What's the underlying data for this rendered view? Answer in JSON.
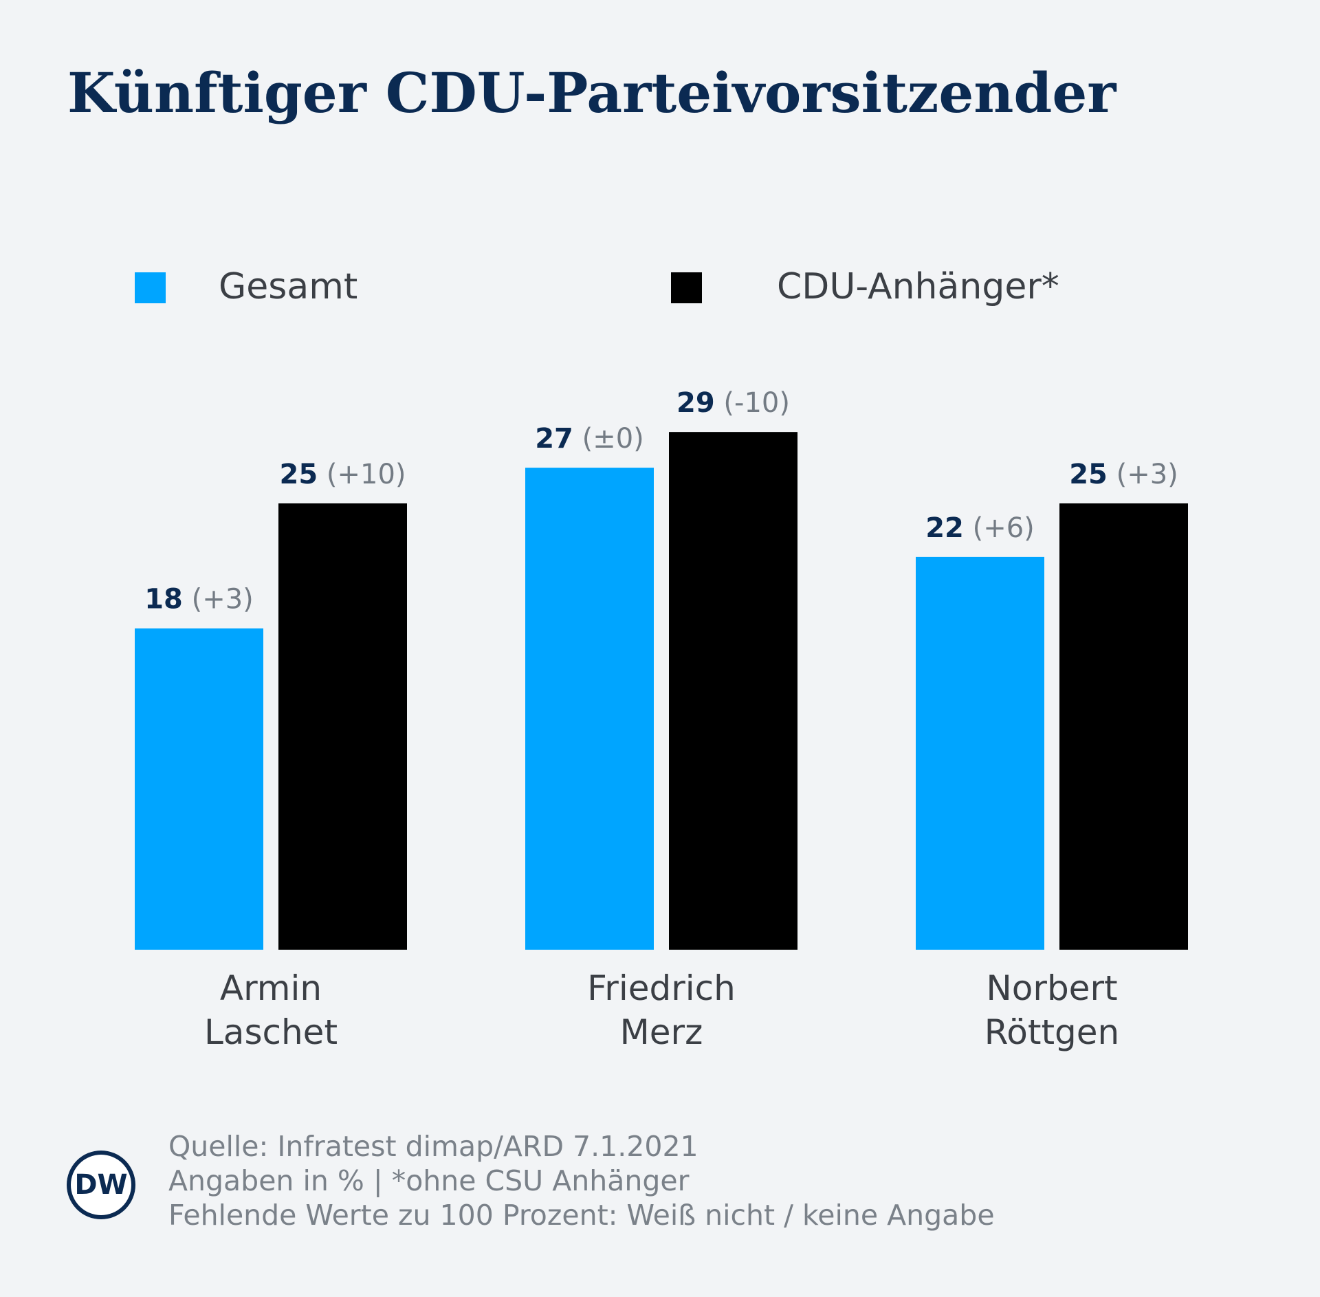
{
  "chart_data": {
    "type": "bar",
    "title": "Künftiger CDU-Parteivorsitzender",
    "categories": [
      "Armin\nLaschet",
      "Friedrich\nMerz",
      "Norbert\nRöttgen"
    ],
    "series": [
      {
        "name": "Gesamt",
        "color": "#00a5ff",
        "values": [
          18,
          27,
          22
        ],
        "change_labels": [
          "(+3)",
          "(±0)",
          "(+6)"
        ]
      },
      {
        "name": "CDU-Anhänger*",
        "color": "#000000",
        "values": [
          25,
          29,
          25
        ],
        "change_labels": [
          "(+10)",
          "(-10)",
          "(+3)"
        ]
      }
    ],
    "legend": "top",
    "notes": [
      "Quelle: Infratest dimap/ARD 7.1.2021",
      "Angaben in % | *ohne CSU Anhänger",
      "Fehlende Werte zu 100 Prozent: Weiß nicht / keine Angabe"
    ],
    "logo": "DW"
  }
}
